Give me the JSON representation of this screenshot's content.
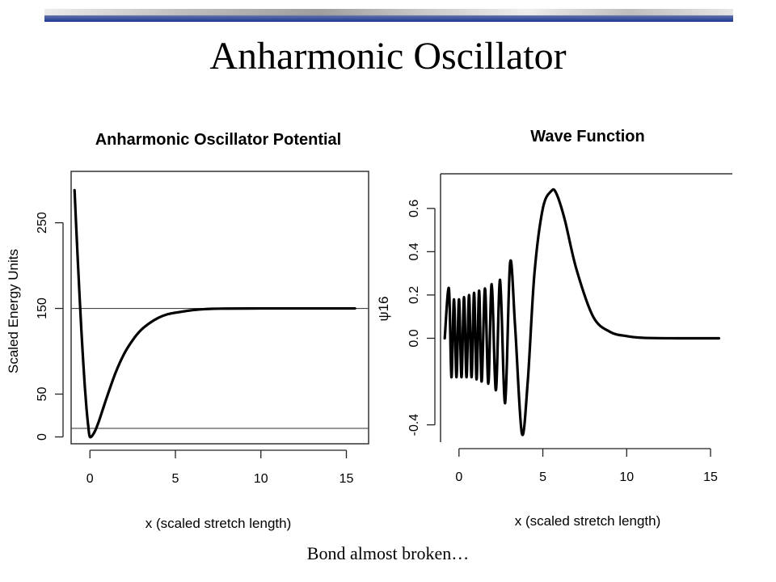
{
  "slide": {
    "title": "Anharmonic Oscillator",
    "caption": "Bond almost broken…"
  },
  "colors": {
    "band_grey": "#c7c7c7",
    "band_blue": "#1f3a93",
    "curve": "#000000",
    "reference_line": "#444444"
  },
  "chart_data": [
    {
      "type": "line",
      "title": "Anharmonic Oscillator Potential",
      "xlabel": "x (scaled stretch length)",
      "ylabel": "Scaled Energy Units",
      "xlim": [
        -1.1,
        16.3
      ],
      "ylim": [
        -8,
        310
      ],
      "x_ticks": [
        0,
        5,
        10,
        15
      ],
      "y_ticks": [
        0,
        50,
        150,
        250
      ],
      "x_tick_labels": [
        "0",
        "5",
        "10",
        "15"
      ],
      "y_tick_labels": [
        "0",
        "50",
        "150",
        "250"
      ],
      "reference_lines": [
        {
          "orientation": "horizontal",
          "y": 150
        },
        {
          "orientation": "horizontal",
          "y": 10
        }
      ],
      "series": [
        {
          "x": [
            -0.9,
            -0.8,
            -0.7,
            -0.6,
            -0.5,
            -0.4,
            -0.3,
            -0.2,
            -0.1,
            0,
            0.25,
            0.5,
            0.75,
            1,
            1.5,
            2,
            2.5,
            3,
            3.5,
            4,
            4.5,
            5,
            6,
            7,
            8,
            10,
            12,
            14,
            15.5
          ],
          "y": [
            288,
            244,
            202,
            162,
            124,
            90,
            59,
            33,
            13,
            0,
            5,
            17,
            32,
            47,
            75,
            97,
            113,
            125,
            133,
            139,
            143,
            145,
            148,
            149.5,
            149.8,
            150,
            150,
            150,
            150
          ]
        }
      ],
      "grid": false,
      "box": true
    },
    {
      "type": "line",
      "title": "Wave Function",
      "xlabel": "x (scaled stretch length)",
      "ylabel": "ψ16",
      "xlim": [
        -1.1,
        16.3
      ],
      "ylim": [
        -0.48,
        0.76
      ],
      "x_ticks": [
        0,
        5,
        10,
        15
      ],
      "y_ticks": [
        -0.4,
        0.0,
        0.2,
        0.4,
        0.6
      ],
      "x_tick_labels": [
        "0",
        "5",
        "10",
        "15"
      ],
      "y_tick_labels": [
        "-0.4",
        "0.0",
        "0.2",
        "0.4",
        "0.6"
      ],
      "series": [
        {
          "x": [
            -0.85,
            -0.6,
            -0.45,
            -0.3,
            -0.15,
            0,
            0.15,
            0.3,
            0.45,
            0.6,
            0.75,
            0.9,
            1.05,
            1.2,
            1.35,
            1.55,
            1.75,
            1.95,
            2.2,
            2.45,
            2.75,
            3.05,
            3.35,
            3.75,
            4.1,
            4.5,
            5.0,
            5.5,
            5.8,
            6.3,
            7.0,
            8.0,
            9.0,
            10.0,
            11.0,
            13.0,
            15.5
          ],
          "y": [
            0.0,
            0.23,
            -0.18,
            0.18,
            -0.18,
            0.18,
            -0.18,
            0.19,
            -0.18,
            0.2,
            -0.18,
            0.21,
            -0.19,
            0.22,
            -0.2,
            0.23,
            -0.21,
            0.25,
            -0.24,
            0.27,
            -0.3,
            0.35,
            0.05,
            -0.44,
            -0.2,
            0.3,
            0.6,
            0.68,
            0.67,
            0.55,
            0.32,
            0.1,
            0.03,
            0.01,
            0.002,
            0.0,
            0.0
          ]
        }
      ],
      "grid": false,
      "box": false
    }
  ]
}
